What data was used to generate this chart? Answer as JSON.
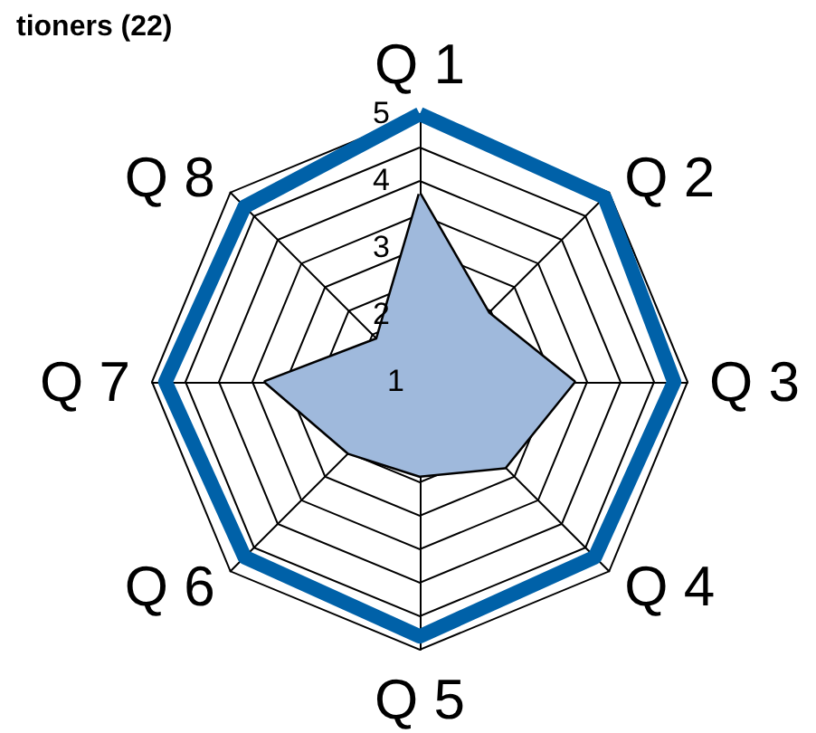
{
  "chart_data": {
    "type": "radar",
    "title": "tioners (22)",
    "categories": [
      "Q 1",
      "Q 2",
      "Q 3",
      "Q 4",
      "Q 5",
      "Q 6",
      "Q 7",
      "Q 8"
    ],
    "ylim": [
      1,
      5
    ],
    "yticks": [
      1,
      2,
      3,
      4,
      5
    ],
    "grid": true,
    "marker": "none",
    "line_style": "solid",
    "series": [
      {
        "color": "#0061a8",
        "values": [
          5,
          4.9,
          4.8,
          4.7,
          4.8,
          4.7,
          4.8,
          4.7
        ]
      },
      {
        "type": "area",
        "color": "#9fb9dc",
        "values": [
          3.8,
          2.45,
          3.3,
          2.8,
          2.4,
          2.5,
          3.3,
          1.9
        ]
      }
    ]
  }
}
